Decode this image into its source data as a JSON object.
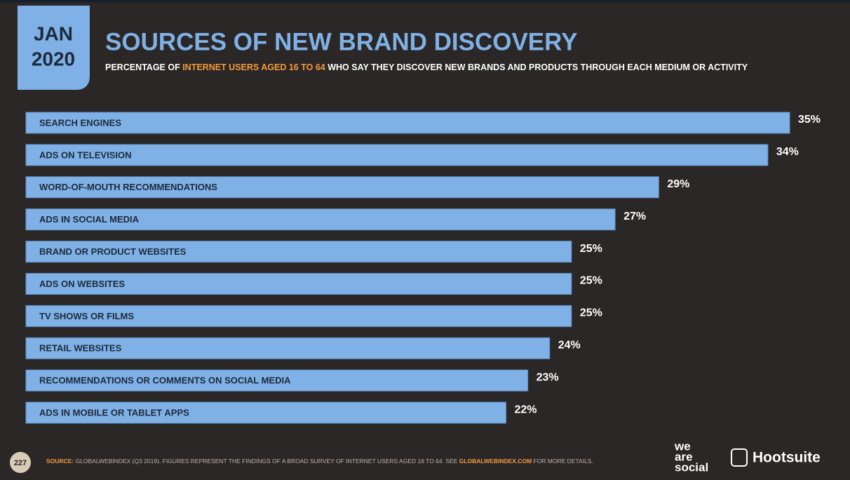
{
  "date_badge": {
    "month": "JAN",
    "year": "2020"
  },
  "chart_data": {
    "type": "bar",
    "orientation": "horizontal",
    "title": "SOURCES OF NEW BRAND DISCOVERY",
    "subtitle": {
      "before": "PERCENTAGE OF ",
      "highlight": "INTERNET USERS AGED 16 TO 64",
      "after": " WHO SAY THEY DISCOVER NEW BRANDS AND PRODUCTS THROUGH EACH MEDIUM OR ACTIVITY"
    },
    "categories": [
      "SEARCH ENGINES",
      "ADS ON TELEVISION",
      "WORD-OF-MOUTH RECOMMENDATIONS",
      "ADS IN SOCIAL MEDIA",
      "BRAND OR PRODUCT WEBSITES",
      "ADS ON WEBSITES",
      "TV SHOWS OR FILMS",
      "RETAIL WEBSITES",
      "RECOMMENDATIONS OR COMMENTS ON SOCIAL MEDIA",
      "ADS IN MOBILE OR TABLET APPS"
    ],
    "values": [
      35,
      34,
      29,
      27,
      25,
      25,
      25,
      24,
      23,
      22
    ],
    "value_labels": [
      "35%",
      "34%",
      "29%",
      "27%",
      "25%",
      "25%",
      "25%",
      "24%",
      "23%",
      "22%"
    ],
    "color": "#7fb1e6"
  },
  "footer": {
    "page_number": "227",
    "source_label": "SOURCE:",
    "source_text": " GLOBALWEBINDEX (Q3 2019). FIGURES REPRESENT THE FINDINGS OF A BROAD SURVEY OF INTERNET USERS AGED 16 TO 64. SEE ",
    "source_link": "GLOBALWEBINDEX.COM",
    "source_end": " FOR MORE DETAILS."
  },
  "logos": {
    "we_are_social": [
      "we",
      "are",
      "social"
    ],
    "hootsuite": "Hootsuite"
  }
}
